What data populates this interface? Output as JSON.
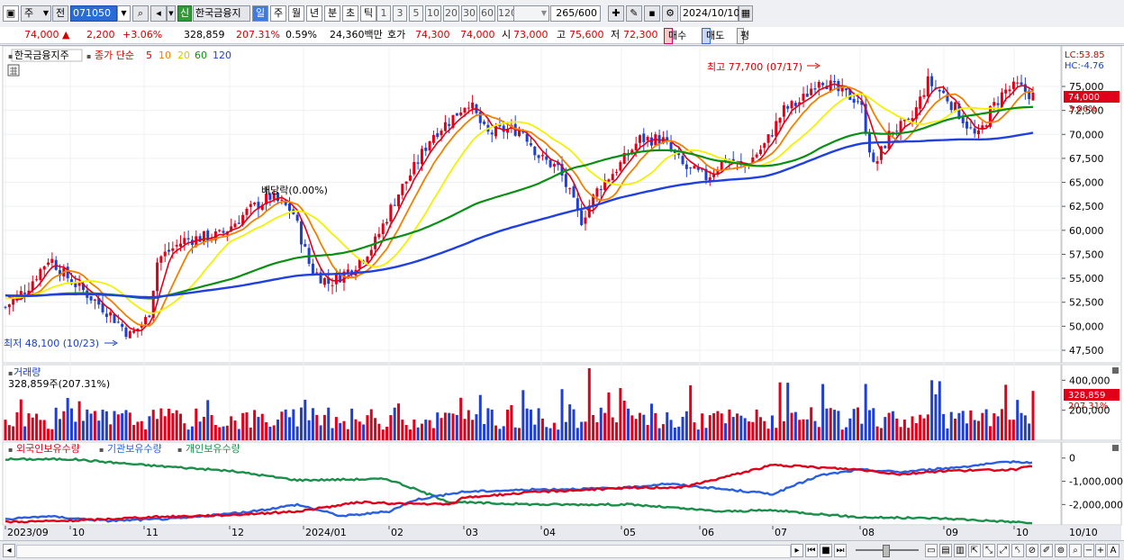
{
  "toolbar": {
    "period_dropdown": "주",
    "prev_label": "전",
    "code_value": "071050",
    "credit_badge": "신",
    "stock_name": "한국금융지",
    "timeframes": [
      "일",
      "주",
      "월",
      "년",
      "분",
      "초",
      "틱"
    ],
    "active_timeframe": "일",
    "intervals": [
      "1",
      "3",
      "5",
      "10",
      "20",
      "30",
      "60",
      "120"
    ],
    "count_value": "265",
    "count_total": "/600",
    "date_value": "2024/10/10"
  },
  "info": {
    "price": "74,000 ▲",
    "change": "2,200",
    "change_pct": "+3.06%",
    "volume": "328,859",
    "volume_ratio": "207.31%",
    "turnover_pct": "0.59%",
    "amount": "24,360백만",
    "bid_label": "호가",
    "bid1": "74,300",
    "bid2": "74,000",
    "open_label": "시",
    "open": "73,000",
    "high_label": "고",
    "high": "75,600",
    "low_label": "저",
    "low": "72,300",
    "buy_button": "매수",
    "sell_button": "매도",
    "eval_button": "평"
  },
  "legend": {
    "title": "한국금융지주",
    "ma_label": "종가 단순",
    "ma_periods": [
      "5",
      "10",
      "20",
      "60",
      "120"
    ]
  },
  "colors": {
    "up": "#e0001a",
    "down": "#1f3fd0",
    "ma5": "#e0001a",
    "ma10": "#f08000",
    "ma20": "#f2f200",
    "ma60": "#0a8f14",
    "ma120": "#2040e0",
    "foreign": "#e0001a",
    "institution": "#2a5fe0",
    "individual": "#1a8f4a"
  },
  "price_panel": {
    "lc_label": "LC:53.85",
    "hc_label": "HC:-4.76",
    "last_price_tag": "74,000",
    "last_pct_tag": "3.06%",
    "high_annotation": "최고 77,700 (07/17)",
    "low_annotation": "최저 48,100 (10/23)",
    "dividend_annotation": "배당락(0.00%)",
    "y_ticks": [
      "75,000",
      "72,500",
      "70,000",
      "67,500",
      "65,000",
      "62,500",
      "60,000",
      "57,500",
      "55,000",
      "52,500",
      "50,000",
      "47,500"
    ]
  },
  "volume_panel": {
    "title": "거래량",
    "subtitle": "328,859주(207.31%)",
    "y_ticks": [
      "400,000",
      "200,000"
    ],
    "last_tag": "328,859",
    "last_pct_tag": "207.31%"
  },
  "holdings_panel": {
    "legend": [
      "외국인보유수량",
      "기관보유수량",
      "개인보유수량"
    ],
    "y_ticks": [
      "0",
      "-1,000,000",
      "-2,000,000"
    ]
  },
  "x_axis": {
    "labels": [
      "2023/09",
      "10",
      "11",
      "12",
      "2024/01",
      "02",
      "03",
      "04",
      "05",
      "06",
      "07",
      "08",
      "09",
      "10"
    ],
    "right_label": "10/10"
  },
  "chart_data": {
    "type": "candlestick",
    "price_range": [
      46500,
      78500
    ],
    "monthly_closes": [
      {
        "month": "2023/09",
        "close": 53200
      },
      {
        "month": "10",
        "close": 50500
      },
      {
        "month": "11",
        "close": 58500
      },
      {
        "month": "12",
        "close": 61500
      },
      {
        "month": "2024/01",
        "close": 54300
      },
      {
        "month": "02",
        "close": 67500
      },
      {
        "month": "03",
        "close": 68200
      },
      {
        "month": "04",
        "close": 62500
      },
      {
        "month": "05",
        "close": 69500
      },
      {
        "month": "06",
        "close": 66500
      },
      {
        "month": "07",
        "close": 74500
      },
      {
        "month": "08",
        "close": 71000
      },
      {
        "month": "09",
        "close": 72500
      },
      {
        "month": "10",
        "close": 74000
      }
    ],
    "series": [
      {
        "name": "5",
        "values": [
          52500,
          51000,
          58000,
          61000,
          54500,
          67000,
          69500,
          63000,
          69500,
          66500,
          74000,
          70500,
          72500,
          73800
        ]
      },
      {
        "name": "10",
        "values": [
          52600,
          51200,
          57500,
          61200,
          55000,
          66500,
          69800,
          63500,
          69200,
          66800,
          73500,
          70800,
          72300,
          73500
        ]
      },
      {
        "name": "20",
        "values": [
          52300,
          51800,
          56500,
          60800,
          56500,
          64500,
          70000,
          65000,
          68500,
          67200,
          72800,
          71300,
          72000,
          73000
        ]
      },
      {
        "name": "60",
        "values": [
          51700,
          51900,
          53500,
          56500,
          57800,
          60800,
          65500,
          67000,
          67800,
          67200,
          69500,
          70500,
          71500,
          72800
        ]
      },
      {
        "name": "120",
        "values": [
          53000,
          52800,
          52600,
          53200,
          55000,
          57500,
          60500,
          63000,
          65200,
          66000,
          67800,
          68800,
          69300,
          69600
        ]
      }
    ]
  }
}
